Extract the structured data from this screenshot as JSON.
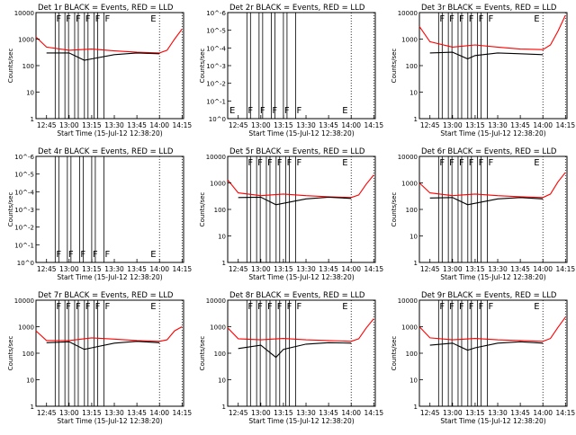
{
  "chart_data": [
    {
      "type": "line",
      "title": "Det 1r  BLACK = Events, RED = LLD",
      "ylabel": "Counts/sec",
      "xlabel": "Start Time (15-Jul-12 12:38:20)",
      "xticks": [
        "12:45",
        "13:00",
        "13:15",
        "13:30",
        "13:45",
        "14:00",
        "14:15"
      ],
      "yticks": [
        "1",
        "10",
        "100",
        "1000",
        "10000"
      ],
      "ylim_log10": [
        0,
        4
      ],
      "markers": [
        "F",
        "F",
        "F",
        "F",
        "F",
        "F",
        "E"
      ],
      "grid": "dotted vertical lines at 14:00 and 14:15",
      "series": [
        {
          "color": "#ff0000",
          "x": [
            "12:38",
            "12:45",
            "13:00",
            "13:15",
            "13:30",
            "13:45",
            "14:00",
            "14:05",
            "14:10",
            "14:15"
          ],
          "values": [
            1200,
            500,
            380,
            420,
            360,
            320,
            300,
            380,
            1000,
            2400
          ]
        },
        {
          "color": "#000000",
          "x": [
            "12:45",
            "13:00",
            "13:10",
            "13:15",
            "13:30",
            "13:45",
            "14:00"
          ],
          "values": [
            300,
            300,
            160,
            180,
            260,
            300,
            280
          ]
        }
      ]
    },
    {
      "type": "line",
      "title": "Det 2r  BLACK = Events, RED = LLD",
      "ylabel": "Counts/sec",
      "xlabel": "Start Time (15-Jul-12 12:38:20)",
      "xticks": [
        "12:45",
        "13:00",
        "13:15",
        "13:30",
        "13:45",
        "14:00",
        "14:15"
      ],
      "yticks": [
        "10^0",
        "10^-1",
        "10^-2",
        "10^-3",
        "10^-4",
        "10^-5",
        "10^-6"
      ],
      "ylim_log10": [
        0,
        -6
      ],
      "markers": [
        "E",
        "F",
        "F",
        "F",
        "F",
        "F",
        "E"
      ],
      "grid": "dotted vertical lines at 14:00 and 14:15",
      "series": []
    },
    {
      "type": "line",
      "title": "Det 3r  BLACK = Events, RED = LLD",
      "ylabel": "Counts/sec",
      "xlabel": "Start Time (15-Jul-12 12:38:20)",
      "xticks": [
        "12:45",
        "13:00",
        "13:15",
        "13:30",
        "13:45",
        "14:00",
        "14:15"
      ],
      "yticks": [
        "1",
        "10",
        "100",
        "1000",
        "10000"
      ],
      "ylim_log10": [
        0,
        4
      ],
      "markers": [
        "F",
        "F",
        "F",
        "F",
        "F",
        "F",
        "E"
      ],
      "grid": "dotted vertical lines at 14:00 and 14:15",
      "series": [
        {
          "color": "#ff0000",
          "x": [
            "12:38",
            "12:45",
            "13:00",
            "13:15",
            "13:30",
            "13:45",
            "14:00",
            "14:05",
            "14:10",
            "14:15"
          ],
          "values": [
            3000,
            800,
            500,
            600,
            500,
            420,
            400,
            600,
            2000,
            8000
          ]
        },
        {
          "color": "#000000",
          "x": [
            "12:45",
            "13:00",
            "13:10",
            "13:15",
            "13:30",
            "13:45",
            "14:00"
          ],
          "values": [
            300,
            320,
            180,
            240,
            300,
            280,
            260
          ]
        }
      ]
    },
    {
      "type": "line",
      "title": "Det 4r  BLACK = Events, RED = LLD",
      "ylabel": "Counts/sec",
      "xlabel": "Start Time (15-Jul-12 12:38:20)",
      "xticks": [
        "12:45",
        "13:00",
        "13:15",
        "13:30",
        "13:45",
        "14:00",
        "14:15"
      ],
      "yticks": [
        "10^0",
        "10^-1",
        "10^-2",
        "10^-3",
        "10^-4",
        "10^-5",
        "10^-6"
      ],
      "ylim_log10": [
        0,
        -6
      ],
      "markers": [
        "F",
        "F",
        "F",
        "F",
        "F",
        "E"
      ],
      "grid": "dotted vertical lines at 14:00 and 14:15",
      "series": []
    },
    {
      "type": "line",
      "title": "Det 5r  BLACK = Events, RED = LLD",
      "ylabel": "Counts/sec",
      "xlabel": "Start Time (15-Jul-12 12:38:20)",
      "xticks": [
        "12:45",
        "13:00",
        "13:15",
        "13:30",
        "13:45",
        "14:00",
        "14:15"
      ],
      "yticks": [
        "1",
        "10",
        "100",
        "1000",
        "10000"
      ],
      "ylim_log10": [
        0,
        4
      ],
      "markers": [
        "F",
        "F",
        "F",
        "F",
        "F",
        "F",
        "E"
      ],
      "grid": "dotted vertical lines at 14:00 and 14:15",
      "series": [
        {
          "color": "#ff0000",
          "x": [
            "12:38",
            "12:45",
            "13:00",
            "13:15",
            "13:30",
            "13:45",
            "14:00",
            "14:05",
            "14:10",
            "14:15"
          ],
          "values": [
            1300,
            420,
            330,
            380,
            330,
            300,
            280,
            350,
            900,
            2000
          ]
        },
        {
          "color": "#000000",
          "x": [
            "12:45",
            "13:00",
            "13:10",
            "13:15",
            "13:30",
            "13:45",
            "14:00"
          ],
          "values": [
            280,
            290,
            150,
            170,
            250,
            290,
            260
          ]
        }
      ]
    },
    {
      "type": "line",
      "title": "Det 6r  BLACK = Events, RED = LLD",
      "ylabel": "Counts/sec",
      "xlabel": "Start Time (15-Jul-12 12:38:20)",
      "xticks": [
        "12:45",
        "13:00",
        "13:15",
        "13:30",
        "13:45",
        "14:00",
        "14:15"
      ],
      "yticks": [
        "1",
        "10",
        "100",
        "1000",
        "10000"
      ],
      "ylim_log10": [
        0,
        4
      ],
      "markers": [
        "F",
        "F",
        "F",
        "F",
        "F",
        "F",
        "E"
      ],
      "grid": "dotted vertical lines at 14:00 and 14:15",
      "series": [
        {
          "color": "#ff0000",
          "x": [
            "12:38",
            "12:45",
            "13:00",
            "13:15",
            "13:30",
            "13:45",
            "14:00",
            "14:05",
            "14:10",
            "14:15"
          ],
          "values": [
            1000,
            420,
            330,
            380,
            330,
            300,
            280,
            380,
            1100,
            2500
          ]
        },
        {
          "color": "#000000",
          "x": [
            "12:45",
            "13:00",
            "13:10",
            "13:15",
            "13:30",
            "13:45",
            "14:00"
          ],
          "values": [
            270,
            280,
            150,
            170,
            250,
            280,
            250
          ]
        }
      ]
    },
    {
      "type": "line",
      "title": "Det 7r  BLACK = Events, RED = LLD",
      "ylabel": "Counts/sec",
      "xlabel": "Start Time (15-Jul-12 12:38:20)",
      "xticks": [
        "12:45",
        "13:00",
        "13:15",
        "13:30",
        "13:45",
        "14:00",
        "14:15"
      ],
      "yticks": [
        "1",
        "10",
        "100",
        "1000",
        "10000"
      ],
      "ylim_log10": [
        0,
        4
      ],
      "markers": [
        "F",
        "F",
        "F",
        "F",
        "F",
        "F",
        "E"
      ],
      "grid": "dotted vertical lines at 14:00 and 14:15",
      "series": [
        {
          "color": "#ff0000",
          "x": [
            "12:38",
            "12:45",
            "13:00",
            "13:15",
            "13:30",
            "13:45",
            "14:00",
            "14:05",
            "14:10",
            "14:15"
          ],
          "values": [
            700,
            300,
            300,
            380,
            340,
            300,
            280,
            320,
            700,
            1000
          ]
        },
        {
          "color": "#000000",
          "x": [
            "12:45",
            "13:00",
            "13:10",
            "13:15",
            "13:30",
            "13:45",
            "14:00"
          ],
          "values": [
            250,
            270,
            140,
            160,
            240,
            280,
            250
          ]
        }
      ]
    },
    {
      "type": "line",
      "title": "Det 8r  BLACK = Events, RED = LLD",
      "ylabel": "Counts/sec",
      "xlabel": "Start Time (15-Jul-12 12:38:20)",
      "xticks": [
        "12:45",
        "13:00",
        "13:15",
        "13:30",
        "13:45",
        "14:00",
        "14:15"
      ],
      "yticks": [
        "1",
        "10",
        "100",
        "1000",
        "10000"
      ],
      "ylim_log10": [
        0,
        4
      ],
      "markers": [
        "F",
        "F",
        "F",
        "F",
        "F",
        "F",
        "E"
      ],
      "grid": "dotted vertical lines at 14:00 and 14:15",
      "series": [
        {
          "color": "#ff0000",
          "x": [
            "12:38",
            "12:45",
            "13:00",
            "13:15",
            "13:30",
            "13:45",
            "14:00",
            "14:05",
            "14:10",
            "14:15"
          ],
          "values": [
            900,
            350,
            320,
            360,
            320,
            300,
            280,
            350,
            900,
            2000
          ]
        },
        {
          "color": "#000000",
          "x": [
            "12:45",
            "13:00",
            "13:10",
            "13:15",
            "13:30",
            "13:45",
            "14:00"
          ],
          "values": [
            150,
            200,
            70,
            140,
            220,
            250,
            240
          ]
        }
      ]
    },
    {
      "type": "line",
      "title": "Det 9r  BLACK = Events, RED = LLD",
      "ylabel": "Counts/sec",
      "xlabel": "Start Time (15-Jul-12 12:38:20)",
      "xticks": [
        "12:45",
        "13:00",
        "13:15",
        "13:30",
        "13:45",
        "14:00",
        "14:15"
      ],
      "yticks": [
        "1",
        "10",
        "100",
        "1000",
        "10000"
      ],
      "ylim_log10": [
        0,
        4
      ],
      "markers": [
        "F",
        "F",
        "F",
        "F",
        "F",
        "F",
        "E"
      ],
      "grid": "dotted vertical lines at 14:00 and 14:15",
      "series": [
        {
          "color": "#ff0000",
          "x": [
            "12:38",
            "12:45",
            "13:00",
            "13:15",
            "13:30",
            "13:45",
            "14:00",
            "14:05",
            "14:10",
            "14:15"
          ],
          "values": [
            1000,
            380,
            320,
            360,
            320,
            300,
            280,
            360,
            950,
            2300
          ]
        },
        {
          "color": "#000000",
          "x": [
            "12:45",
            "13:00",
            "13:10",
            "13:15",
            "13:30",
            "13:45",
            "14:00"
          ],
          "values": [
            200,
            240,
            130,
            160,
            240,
            270,
            240
          ]
        }
      ]
    }
  ]
}
